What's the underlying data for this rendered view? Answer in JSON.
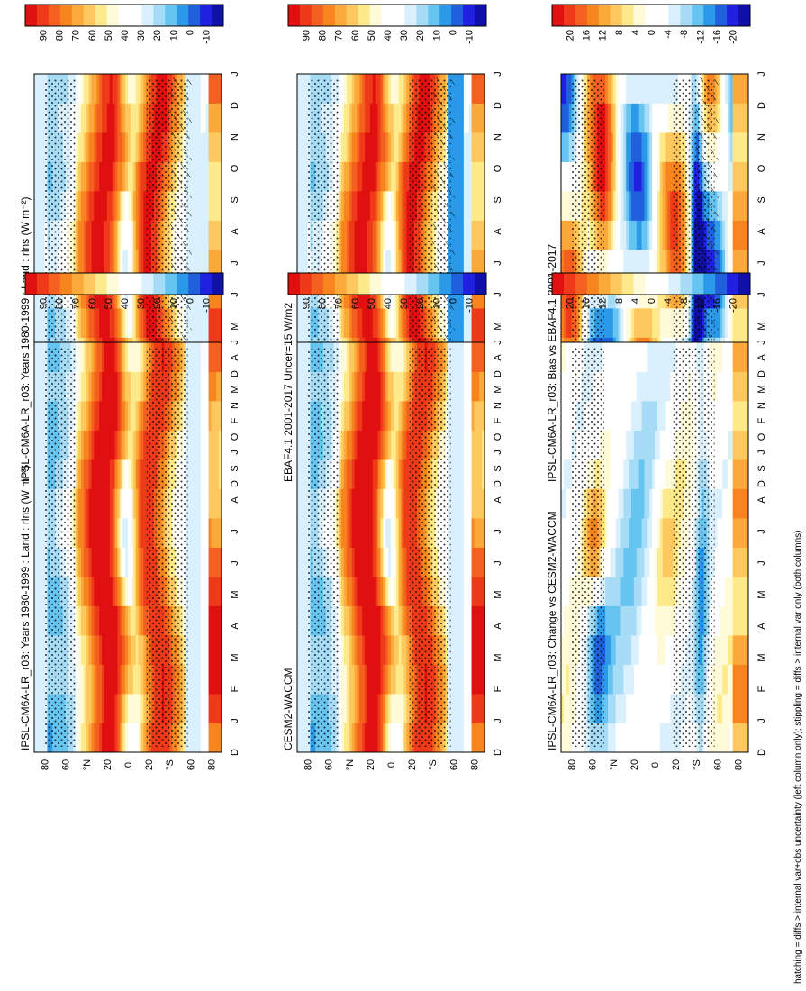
{
  "figure": {
    "footnote": "hatching = diffs > internal var+obs uncertainty (left column only); stippling = diffs > internal var only (both columns)"
  },
  "chart_data": [
    {
      "type": "heatmap",
      "field": "mean",
      "title": "IPSL-CM6A-LR_r03: Years 1980-1999 : Land : rlns (W m⁻²)",
      "xlabel": "",
      "ylabel": "",
      "x_ticks": [
        "D",
        "J",
        "F",
        "M",
        "A",
        "M",
        "J",
        "J",
        "A",
        "S",
        "O",
        "N",
        "D",
        "J"
      ],
      "y_ticks": [
        "80",
        "60",
        "°N",
        "20",
        "0",
        "20",
        "°S",
        "60",
        "80"
      ],
      "ylim": [
        -90,
        90
      ],
      "colorbar_ticks": [
        "90",
        "80",
        "70",
        "60",
        "50",
        "40",
        "30",
        "20",
        "10",
        "0",
        "-10"
      ],
      "vmin": -15,
      "vmax": 95,
      "hatching": true,
      "stippling": true
    },
    {
      "type": "heatmap",
      "field": "mean",
      "title": "IPSL-CM6A-LR_r03: Years 1980-1999 : Land : rlns (W m⁻²)",
      "xlabel": "",
      "ylabel": "",
      "x_ticks": [
        "D",
        "J",
        "F",
        "M",
        "A",
        "M",
        "J",
        "J",
        "A",
        "S",
        "O",
        "N",
        "D",
        "J"
      ],
      "y_ticks": [
        "80",
        "60",
        "°N",
        "20",
        "0",
        "20",
        "°S",
        "60",
        "80"
      ],
      "ylim": [
        -90,
        90
      ],
      "colorbar_ticks": [
        "90",
        "80",
        "70",
        "60",
        "50",
        "40",
        "30",
        "20",
        "10",
        "0",
        "-10"
      ],
      "vmin": -15,
      "vmax": 95,
      "hatching": false,
      "stippling": true
    },
    {
      "type": "heatmap",
      "field": "mean",
      "title": "EBAF4.1 2001-2017 Uncer=15 W/m2",
      "xlabel": "",
      "ylabel": "",
      "x_ticks": [
        "D",
        "J",
        "F",
        "M",
        "A",
        "M",
        "J",
        "J",
        "A",
        "S",
        "O",
        "N",
        "D",
        "J"
      ],
      "y_ticks": [
        "80",
        "60",
        "°N",
        "20",
        "0",
        "20",
        "°S",
        "60",
        "80"
      ],
      "ylim": [
        -90,
        90
      ],
      "colorbar_ticks": [
        "90",
        "80",
        "70",
        "60",
        "50",
        "40",
        "30",
        "20",
        "10",
        "0",
        "-10"
      ],
      "vmin": -15,
      "vmax": 95,
      "hatching": true,
      "stippling": true
    },
    {
      "type": "heatmap",
      "field": "mean",
      "title": "CESM2-WACCM",
      "xlabel": "",
      "ylabel": "",
      "x_ticks": [
        "D",
        "J",
        "F",
        "M",
        "A",
        "M",
        "J",
        "J",
        "A",
        "S",
        "O",
        "N",
        "D",
        "J"
      ],
      "y_ticks": [
        "80",
        "60",
        "°N",
        "20",
        "0",
        "20",
        "°S",
        "60",
        "80"
      ],
      "ylim": [
        -90,
        90
      ],
      "colorbar_ticks": [
        "90",
        "80",
        "70",
        "60",
        "50",
        "40",
        "30",
        "20",
        "10",
        "0",
        "-10"
      ],
      "vmin": -15,
      "vmax": 95,
      "hatching": false,
      "stippling": true
    },
    {
      "type": "heatmap",
      "field": "bias",
      "title": "IPSL-CM6A-LR_r03: Bias vs EBAF4.1 2001-2017",
      "xlabel": "",
      "ylabel": "",
      "x_ticks": [
        "D",
        "J",
        "F",
        "M",
        "A",
        "M",
        "J",
        "J",
        "A",
        "S",
        "O",
        "N",
        "D",
        "J"
      ],
      "y_ticks": [
        "80",
        "60",
        "°N",
        "20",
        "0",
        "20",
        "°S",
        "60",
        "80"
      ],
      "ylim": [
        -90,
        90
      ],
      "colorbar_ticks": [
        "20",
        "16",
        "12",
        "8",
        "4",
        "0",
        "-4",
        "-8",
        "-12",
        "-16",
        "-20"
      ],
      "vmin": -22,
      "vmax": 22,
      "hatching": true,
      "stippling": true
    },
    {
      "type": "heatmap",
      "field": "change",
      "title": "IPSL-CM6A-LR_r03: Change vs CESM2-WACCM",
      "xlabel": "",
      "ylabel": "",
      "x_ticks": [
        "D",
        "J",
        "F",
        "M",
        "A",
        "M",
        "J",
        "J",
        "A",
        "S",
        "O",
        "N",
        "D",
        "J"
      ],
      "y_ticks": [
        "80",
        "60",
        "°N",
        "20",
        "0",
        "20",
        "°S",
        "60",
        "80"
      ],
      "ylim": [
        -90,
        90
      ],
      "colorbar_ticks": [
        "20",
        "16",
        "12",
        "8",
        "4",
        "0",
        "-4",
        "-8",
        "-12",
        "-16",
        "-20"
      ],
      "vmin": -22,
      "vmax": 22,
      "hatching": false,
      "stippling": true
    }
  ],
  "colors": {
    "scale": [
      "#e01010",
      "#ee3a18",
      "#f46020",
      "#f8841e",
      "#fba93a",
      "#fdc95e",
      "#feea8a",
      "#fffbd8",
      "#ffffff",
      "#ffffff",
      "#daf0fc",
      "#a6dcf6",
      "#66c4f0",
      "#2a9ae8",
      "#2060dc",
      "#2020e0",
      "#1010a8"
    ]
  }
}
